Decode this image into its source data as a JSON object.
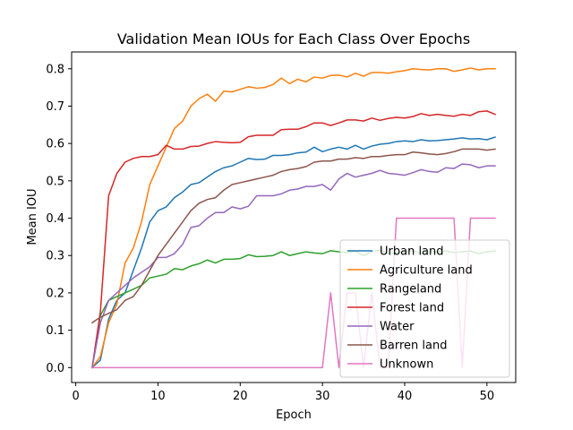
{
  "chart_data": {
    "type": "line",
    "title": "Validation Mean IOUs for Each Class Over Epochs",
    "xlabel": "Epoch",
    "ylabel": "Mean IOU",
    "xlim": [
      -0.5,
      53.5
    ],
    "ylim": [
      -0.04,
      0.845
    ],
    "xticks": [
      0,
      10,
      20,
      30,
      40,
      50
    ],
    "yticks": [
      0.0,
      0.1,
      0.2,
      0.3,
      0.4,
      0.5,
      0.6,
      0.7,
      0.8
    ],
    "xtick_labels": [
      "0",
      "10",
      "20",
      "30",
      "40",
      "50"
    ],
    "ytick_labels": [
      "0.0",
      "0.1",
      "0.2",
      "0.3",
      "0.4",
      "0.5",
      "0.6",
      "0.7",
      "0.8"
    ],
    "grid": false,
    "legend_position": "lower-right",
    "x": [
      2,
      3,
      4,
      5,
      6,
      7,
      8,
      9,
      10,
      11,
      12,
      13,
      14,
      15,
      16,
      17,
      18,
      19,
      20,
      21,
      22,
      23,
      24,
      25,
      26,
      27,
      28,
      29,
      30,
      31,
      32,
      33,
      34,
      35,
      36,
      37,
      38,
      39,
      40,
      41,
      42,
      43,
      44,
      45,
      46,
      47,
      48,
      49,
      50,
      51
    ],
    "series": [
      {
        "name": "Urban land",
        "color": "#1f77b4",
        "values": [
          0.0,
          0.02,
          0.13,
          0.18,
          0.2,
          0.26,
          0.32,
          0.39,
          0.42,
          0.43,
          0.455,
          0.47,
          0.49,
          0.495,
          0.51,
          0.525,
          0.535,
          0.54,
          0.55,
          0.56,
          0.557,
          0.558,
          0.568,
          0.568,
          0.57,
          0.575,
          0.577,
          0.59,
          0.578,
          0.585,
          0.59,
          0.585,
          0.595,
          0.585,
          0.593,
          0.598,
          0.6,
          0.605,
          0.607,
          0.605,
          0.61,
          0.607,
          0.608,
          0.61,
          0.612,
          0.615,
          0.612,
          0.613,
          0.61,
          0.617
        ]
      },
      {
        "name": "Agriculture land",
        "color": "#ff7f0e",
        "values": [
          0.0,
          0.03,
          0.12,
          0.17,
          0.28,
          0.32,
          0.39,
          0.49,
          0.54,
          0.59,
          0.64,
          0.66,
          0.7,
          0.72,
          0.732,
          0.713,
          0.74,
          0.738,
          0.745,
          0.752,
          0.748,
          0.75,
          0.758,
          0.775,
          0.76,
          0.772,
          0.765,
          0.778,
          0.775,
          0.782,
          0.783,
          0.778,
          0.788,
          0.78,
          0.79,
          0.79,
          0.788,
          0.792,
          0.795,
          0.8,
          0.798,
          0.797,
          0.8,
          0.8,
          0.793,
          0.797,
          0.802,
          0.797,
          0.8,
          0.8
        ]
      },
      {
        "name": "Rangeland",
        "color": "#2ca02c",
        "values": [
          0.0,
          0.14,
          0.18,
          0.19,
          0.2,
          0.21,
          0.22,
          0.24,
          0.245,
          0.25,
          0.265,
          0.262,
          0.272,
          0.278,
          0.288,
          0.28,
          0.29,
          0.29,
          0.292,
          0.302,
          0.297,
          0.298,
          0.3,
          0.31,
          0.3,
          0.305,
          0.31,
          0.307,
          0.305,
          0.313,
          0.31,
          0.308,
          0.312,
          0.3,
          0.31,
          0.315,
          0.305,
          0.308,
          0.31,
          0.313,
          0.305,
          0.31,
          0.31,
          0.312,
          0.308,
          0.31,
          0.312,
          0.305,
          0.31,
          0.312
        ]
      },
      {
        "name": "Forest land",
        "color": "#d62728",
        "values": [
          0.0,
          0.15,
          0.46,
          0.52,
          0.55,
          0.56,
          0.565,
          0.565,
          0.57,
          0.595,
          0.585,
          0.585,
          0.592,
          0.593,
          0.6,
          0.605,
          0.603,
          0.602,
          0.603,
          0.618,
          0.622,
          0.622,
          0.622,
          0.637,
          0.638,
          0.638,
          0.645,
          0.655,
          0.655,
          0.648,
          0.655,
          0.663,
          0.663,
          0.66,
          0.668,
          0.662,
          0.667,
          0.67,
          0.668,
          0.672,
          0.68,
          0.675,
          0.678,
          0.675,
          0.673,
          0.678,
          0.675,
          0.685,
          0.687,
          0.678
        ]
      },
      {
        "name": "Water",
        "color": "#9467bd",
        "values": [
          0.0,
          0.12,
          0.18,
          0.2,
          0.22,
          0.24,
          0.255,
          0.27,
          0.295,
          0.295,
          0.305,
          0.33,
          0.375,
          0.38,
          0.4,
          0.415,
          0.415,
          0.43,
          0.425,
          0.432,
          0.46,
          0.46,
          0.46,
          0.465,
          0.475,
          0.478,
          0.485,
          0.485,
          0.49,
          0.475,
          0.505,
          0.52,
          0.51,
          0.515,
          0.52,
          0.528,
          0.52,
          0.518,
          0.515,
          0.522,
          0.53,
          0.525,
          0.523,
          0.535,
          0.533,
          0.545,
          0.543,
          0.535,
          0.54,
          0.54
        ]
      },
      {
        "name": "Barren land",
        "color": "#8c564b",
        "values": [
          0.12,
          0.135,
          0.145,
          0.155,
          0.18,
          0.19,
          0.22,
          0.26,
          0.3,
          0.33,
          0.36,
          0.39,
          0.42,
          0.44,
          0.45,
          0.455,
          0.475,
          0.49,
          0.495,
          0.5,
          0.505,
          0.51,
          0.515,
          0.525,
          0.53,
          0.533,
          0.538,
          0.55,
          0.553,
          0.553,
          0.558,
          0.558,
          0.562,
          0.56,
          0.565,
          0.565,
          0.568,
          0.57,
          0.57,
          0.577,
          0.575,
          0.572,
          0.57,
          0.573,
          0.578,
          0.585,
          0.585,
          0.585,
          0.582,
          0.585
        ]
      },
      {
        "name": "Unknown",
        "color": "#e377c2",
        "values": [
          0.0,
          0.0,
          0.0,
          0.0,
          0.0,
          0.0,
          0.0,
          0.0,
          0.0,
          0.0,
          0.0,
          0.0,
          0.0,
          0.0,
          0.0,
          0.0,
          0.0,
          0.0,
          0.0,
          0.0,
          0.0,
          0.0,
          0.0,
          0.0,
          0.0,
          0.0,
          0.0,
          0.0,
          0.0,
          0.2,
          0.0,
          0.2,
          0.2,
          0.0,
          0.2,
          0.0,
          0.0,
          0.4,
          0.4,
          0.4,
          0.4,
          0.4,
          0.4,
          0.4,
          0.4,
          0.0,
          0.4,
          0.4,
          0.4,
          0.4
        ]
      }
    ]
  }
}
